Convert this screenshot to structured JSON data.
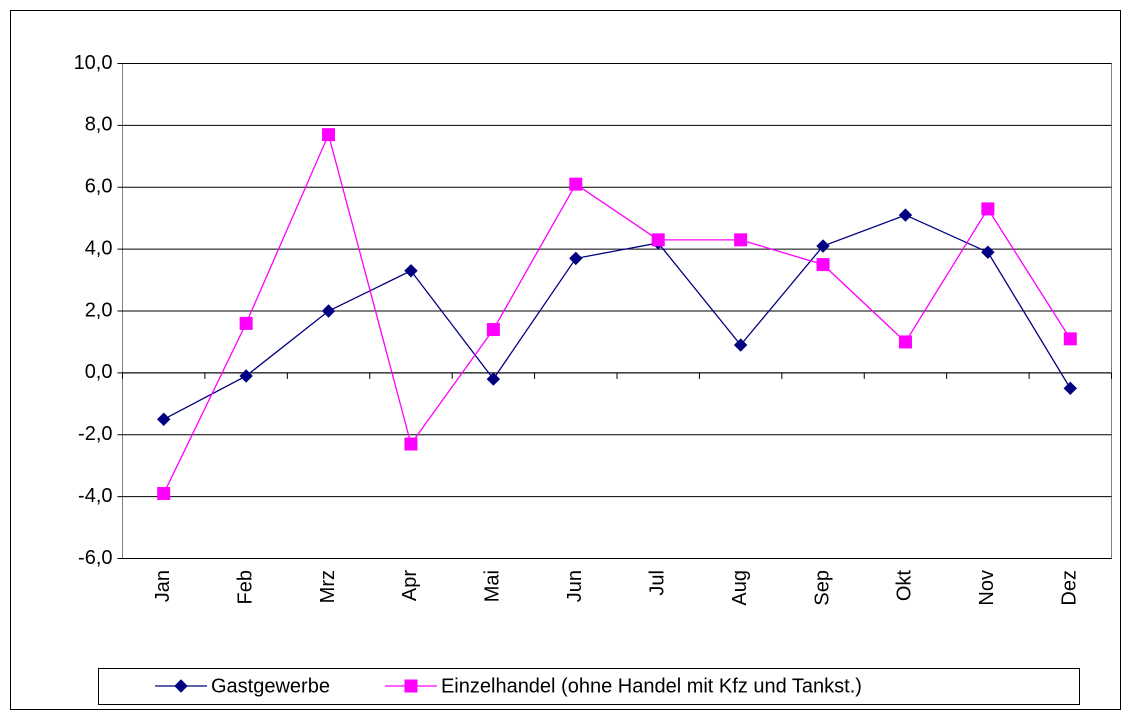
{
  "chart_data": {
    "type": "line",
    "categories": [
      "Jan",
      "Feb",
      "Mrz",
      "Apr",
      "Mai",
      "Jun",
      "Jul",
      "Aug",
      "Sep",
      "Okt",
      "Nov",
      "Dez"
    ],
    "series": [
      {
        "name": "Gastgewerbe",
        "color": "#000080",
        "marker": "diamond",
        "values": [
          -1.5,
          -0.1,
          2.0,
          3.3,
          -0.2,
          3.7,
          4.2,
          0.9,
          4.1,
          5.1,
          3.9,
          -0.5
        ]
      },
      {
        "name": "Einzelhandel (ohne Handel mit Kfz und Tankst.)",
        "color": "#ff00ff",
        "marker": "square",
        "values": [
          -3.9,
          1.6,
          7.7,
          -2.3,
          1.4,
          6.1,
          4.3,
          4.3,
          3.5,
          1.0,
          5.3,
          1.1
        ]
      }
    ],
    "ylim": [
      -6,
      10
    ],
    "yticks": [
      {
        "value": -6,
        "label": "-6,0"
      },
      {
        "value": -4,
        "label": "-4,0"
      },
      {
        "value": -2,
        "label": "-2,0"
      },
      {
        "value": 0,
        "label": "0,0"
      },
      {
        "value": 2,
        "label": "2,0"
      },
      {
        "value": 4,
        "label": "4,0"
      },
      {
        "value": 6,
        "label": "6,0"
      },
      {
        "value": 8,
        "label": "8,0"
      },
      {
        "value": 10,
        "label": "10,0"
      }
    ],
    "grid": true,
    "legend": "bottom"
  }
}
